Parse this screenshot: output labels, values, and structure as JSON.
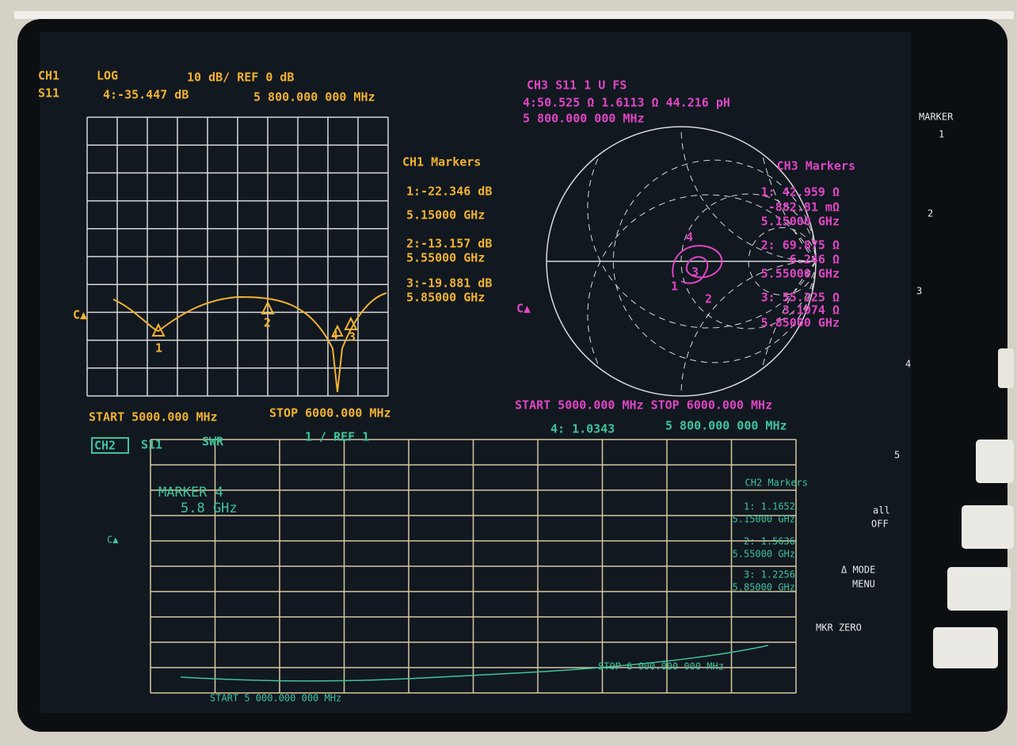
{
  "ch1": {
    "label": "CH1",
    "format": "LOG",
    "scale": "10 dB/ REF 0 dB",
    "param": "S11",
    "active_marker": "4:-35.447 dB",
    "active_freq": "5 800.000 000 MHz",
    "markers_title": "CH1 Markers",
    "markers": [
      [
        "1:-22.346 dB",
        "5.15000 GHz"
      ],
      [
        "2:-13.157 dB",
        "5.55000 GHz"
      ],
      [
        "3:-19.881 dB",
        "5.85000 GHz"
      ]
    ],
    "trace_labels": [
      "1",
      "2",
      "3",
      "4"
    ],
    "cursor": "C▲",
    "start": "START 5000.000 MHz",
    "stop": "STOP 6000.000 MHz"
  },
  "ch3": {
    "title": "CH3  S11   1 U FS",
    "active_marker": "4:50.525 Ω   1.6113 Ω  44.216 pH",
    "active_freq": "5 800.000 000 MHz",
    "markers_title": "CH3 Markers",
    "markers": [
      [
        "1: 42.959 Ω",
        "-882.81 mΩ",
        "5.15000 GHz"
      ],
      [
        "2: 69.875 Ω",
        "6.246 Ω",
        "5.55000 GHz"
      ],
      [
        "3: 55.225 Ω",
        "3.1074 Ω",
        "5.85000 GHz"
      ]
    ],
    "trace_labels": [
      "1",
      "2",
      "3",
      "4"
    ],
    "cursor": "C▲",
    "range": "START 5000.000 MHz  STOP 6000.000 MHz"
  },
  "ch2": {
    "label": "CH2",
    "param": "S11",
    "format": "SWR",
    "scale": "1  / REF 1",
    "active_marker": "4: 1.0343",
    "active_freq": "5 800.000 000 MHz",
    "note": [
      "MARKER 4",
      "5.8 GHz"
    ],
    "cursor": "C▲",
    "markers_title": "CH2 Markers",
    "markers": [
      [
        "1: 1.1652",
        "5.15000 GHz"
      ],
      [
        "2: 1.5636",
        "5.55000 GHz"
      ],
      [
        "3: 1.2256",
        "5.85000 GHz"
      ]
    ],
    "start": "START 5 000.000 000 MHz",
    "stop": "STOP 6 000.000 000 MHz"
  },
  "softkeys": {
    "title": "MARKER",
    "keys": [
      "1",
      "2",
      "3",
      "4",
      "5"
    ],
    "all_off": [
      "all",
      "OFF"
    ],
    "mode_menu": [
      "Δ MODE",
      "MENU"
    ],
    "mkr_zero": "MKR ZERO"
  }
}
